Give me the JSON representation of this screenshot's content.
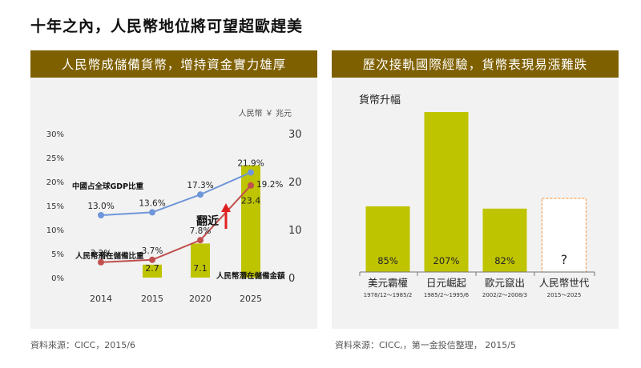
{
  "page": {
    "title": "十年之內，人民幣地位將可望超歐趕美"
  },
  "left_panel": {
    "header": "人民幣成儲備貨幣，增持資金實力雄厚",
    "source": "資料來源：CICC，2015/6"
  },
  "right_panel": {
    "header": "歷次接軌國際經驗，貨幣表現易漲難跌",
    "source": "資料來源：CICC,，第一金投信整理， 2015/5"
  },
  "chart_data": [
    {
      "type": "bar",
      "categories": [
        "2014",
        "2015",
        "2020",
        "2025"
      ],
      "bar_series": {
        "name": "人民幣潛在儲備金額",
        "values": [
          null,
          2.7,
          7.1,
          23.4
        ],
        "labels": [
          "",
          "2.7",
          "7.1",
          "23.4"
        ],
        "axis": "right"
      },
      "line_series": [
        {
          "name": "中國占全球GDP比重",
          "values": [
            13.0,
            13.6,
            17.3,
            21.9
          ],
          "labels": [
            "13.0%",
            "13.6%",
            "17.3%",
            "21.9%"
          ],
          "color": "#6f96d8",
          "axis": "left"
        },
        {
          "name": "人民幣潛在儲備比重",
          "values": [
            3.2,
            3.7,
            7.8,
            19.2
          ],
          "labels": [
            "3.2%",
            "3.7%",
            "7.8%",
            "19.2%"
          ],
          "color": "#c0504d",
          "axis": "left"
        }
      ],
      "left_axis": {
        "ticks": [
          "0%",
          "5%",
          "10%",
          "15%",
          "20%",
          "25%",
          "30%"
        ],
        "range": [
          0,
          30
        ]
      },
      "right_axis": {
        "ticks": [
          "0",
          "10",
          "20",
          "30"
        ],
        "range": [
          0,
          30
        ],
        "unit_label": "人民幣 ￥ 兆元"
      },
      "annotation": "翻近",
      "bar_color": "#bfc400",
      "arrow_color": "#e02020"
    },
    {
      "type": "bar",
      "ylabel": "貨幣升幅",
      "categories": [
        {
          "name": "美元霸權",
          "period": "1978/12～1985/2"
        },
        {
          "name": "日元崛起",
          "period": "1985/2～1995/6"
        },
        {
          "name": "歐元竄出",
          "period": "2002/2～2008/3"
        },
        {
          "name": "人民幣世代",
          "period": "2015～2025"
        }
      ],
      "values": [
        85,
        207,
        82,
        null
      ],
      "labels": [
        "85%",
        "207%",
        "82%",
        "?"
      ],
      "bar_color": "#bfc400",
      "placeholder_color": "#f5a05a"
    }
  ]
}
